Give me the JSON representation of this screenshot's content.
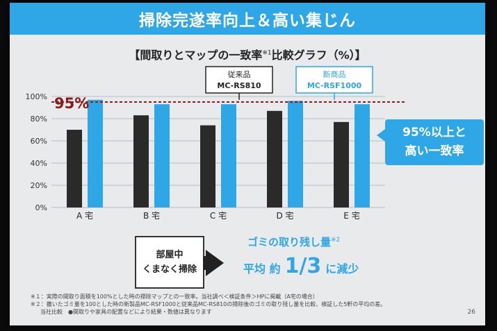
{
  "slide": {
    "title": "掃除完遂率向上＆高い集じん",
    "chart_title": "【間取りとマップの一致率",
    "chart_title_note": "※1",
    "chart_title_tail": "比較グラフ（%）】",
    "callout_line1": "95%以上と",
    "callout_line2": "高い一致率",
    "box_line1": "部屋中",
    "box_line2": "くまなく掃除",
    "gomi_label": "ゴミの取り残し量",
    "gomi_note": "※2",
    "reduce_prefix": "平均 約",
    "reduce_value": "1/3",
    "reduce_suffix": "に減少",
    "note1": "※１：実際の間取り面積を100%とした時の掃除マップとの一致率。当社調べ＜検証条件＞HPに掲載（A宅の場合）",
    "note2": "※２：撒いたゴミ量を100とした時の新製品MC-RSF1000と従来品MC-RS810の掃除後のゴミの取り残し量を比較、検証した5軒の平均の差。",
    "note3": "当社比較　●間取りや家具の配置などにより結果・数値は異なります",
    "page_number": "26"
  },
  "colors": {
    "accent": "#2fa6e6",
    "old_bar": "#2a2a2a",
    "threshold": "#8b1a1a"
  },
  "chart_data": {
    "type": "bar",
    "categories": [
      "A 宅",
      "B 宅",
      "C 宅",
      "D 宅",
      "E 宅"
    ],
    "series": [
      {
        "name": "従来品 MC-RS810",
        "label_line1": "従来品",
        "label_line2": "MC-RS810",
        "values": [
          70,
          83,
          74,
          87,
          77
        ]
      },
      {
        "name": "新商品 MC-RSF1000",
        "label_line1": "新商品",
        "label_line2": "MC-RSF1000",
        "values": [
          97,
          93,
          93,
          96,
          93
        ]
      }
    ],
    "ylim": [
      0,
      100
    ],
    "yticks": [
      "0%",
      "20%",
      "40%",
      "60%",
      "80%",
      "100%"
    ],
    "ytick_values": [
      0,
      20,
      40,
      60,
      80,
      100
    ],
    "threshold": 95,
    "threshold_label": "95%",
    "grid": true
  }
}
